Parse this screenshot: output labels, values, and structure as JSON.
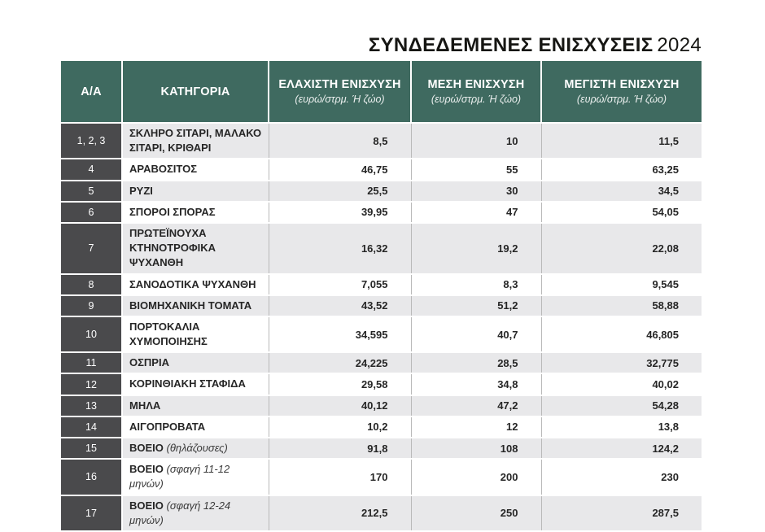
{
  "title": {
    "main": "ΣΥΝΔΕΔΕΜΕΝΕΣ ΕΝΙΣΧΥΣΕΙΣ",
    "year": "2024"
  },
  "colors": {
    "header_bg": "#3f6a60",
    "index_bg": "#4a4a4c",
    "stripe": "#e8e8ea",
    "divider": "#b9b9b9",
    "header_text": "#ffffff",
    "body_text": "#262626"
  },
  "chart_data": {
    "type": "table",
    "title": "ΣΥΝΔΕΔΕΜΕΝΕΣ ΕΝΙΣΧΥΣΕΙΣ 2024",
    "columns": [
      {
        "label": "Α/Α",
        "sub": ""
      },
      {
        "label": "ΚΑΤΗΓΟΡΙΑ",
        "sub": ""
      },
      {
        "label": "ΕΛΑΧΙΣΤΗ ΕΝΙΣΧΥΣΗ",
        "sub": "(ευρώ/στρμ. Ή ζώο)"
      },
      {
        "label": "ΜΕΣΗ ΕΝΙΣΧΥΣΗ",
        "sub": "(ευρώ/στρμ. Ή ζώο)"
      },
      {
        "label": "ΜΕΓΙΣΤΗ ΕΝΙΣΧΥΣΗ",
        "sub": "(ευρώ/στρμ. Ή ζώο)"
      }
    ],
    "rows": [
      {
        "id": "1, 2, 3",
        "category": "ΣΚΛΗΡΟ ΣΙΤΑΡΙ, ΜΑΛΑΚΟ ΣΙΤΑΡΙ, ΚΡΙΘΑΡΙ",
        "note": "",
        "min": "8,5",
        "avg": "10",
        "max": "11,5"
      },
      {
        "id": "4",
        "category": "ΑΡΑΒΟΣΙΤΟΣ",
        "note": "",
        "min": "46,75",
        "avg": "55",
        "max": "63,25"
      },
      {
        "id": "5",
        "category": "ΡΥΖΙ",
        "note": "",
        "min": "25,5",
        "avg": "30",
        "max": "34,5"
      },
      {
        "id": "6",
        "category": "ΣΠΟΡΟΙ ΣΠΟΡΑΣ",
        "note": "",
        "min": "39,95",
        "avg": "47",
        "max": "54,05"
      },
      {
        "id": "7",
        "category": "ΠΡΩΤΕΪΝΟΥΧΑ ΚΤΗΝΟΤΡΟΦΙΚΑ ΨΥΧΑΝΘΗ",
        "note": "",
        "min": "16,32",
        "avg": "19,2",
        "max": "22,08"
      },
      {
        "id": "8",
        "category": "ΣΑΝΟΔΟΤΙΚΑ ΨΥΧΑΝΘΗ",
        "note": "",
        "min": "7,055",
        "avg": "8,3",
        "max": "9,545"
      },
      {
        "id": "9",
        "category": "ΒΙΟΜΗΧΑΝΙΚΗ ΤΟΜΑΤΑ",
        "note": "",
        "min": "43,52",
        "avg": "51,2",
        "max": "58,88"
      },
      {
        "id": "10",
        "category": "ΠΟΡΤΟΚΑΛΙΑ ΧΥΜΟΠΟΙΗΣΗΣ",
        "note": "",
        "min": "34,595",
        "avg": "40,7",
        "max": "46,805"
      },
      {
        "id": "11",
        "category": "ΟΣΠΡΙΑ",
        "note": "",
        "min": "24,225",
        "avg": "28,5",
        "max": "32,775"
      },
      {
        "id": "12",
        "category": "ΚΟΡΙΝΘΙΑΚΗ ΣΤΑΦΙΔΑ",
        "note": "",
        "min": "29,58",
        "avg": "34,8",
        "max": "40,02"
      },
      {
        "id": "13",
        "category": "ΜΗΛΑ",
        "note": "",
        "min": "40,12",
        "avg": "47,2",
        "max": "54,28"
      },
      {
        "id": "14",
        "category": "ΑΙΓΟΠΡΟΒΑΤΑ",
        "note": "",
        "min": "10,2",
        "avg": "12",
        "max": "13,8"
      },
      {
        "id": "15",
        "category": "ΒΟΕΙΟ",
        "note": "(θηλάζουσες)",
        "min": "91,8",
        "avg": "108",
        "max": "124,2"
      },
      {
        "id": "16",
        "category": "ΒΟΕΙΟ",
        "note": "(σφαγή 11-12 μηνών)",
        "min": "170",
        "avg": "200",
        "max": "230"
      },
      {
        "id": "17",
        "category": "ΒΟΕΙΟ",
        "note": "(σφαγή 12-24 μηνών)",
        "min": "212,5",
        "avg": "250",
        "max": "287,5"
      }
    ]
  }
}
